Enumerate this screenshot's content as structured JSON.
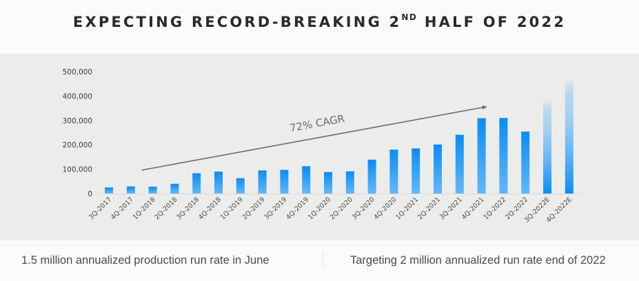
{
  "title": {
    "prefix": "EXPECTING RECORD-BREAKING 2",
    "superscript": "ND",
    "suffix": " HALF OF 2022"
  },
  "chart_data": {
    "type": "bar",
    "title": "EXPECTING RECORD-BREAKING 2ND HALF OF 2022",
    "xlabel": "",
    "ylabel": "",
    "ylim": [
      0,
      500000
    ],
    "yticks": [
      0,
      100000,
      200000,
      300000,
      400000,
      500000
    ],
    "ytick_labels": [
      "0",
      "100,000",
      "200,000",
      "300,000",
      "400,000",
      "500,000"
    ],
    "grid": false,
    "categories": [
      "3Q-2017",
      "4Q-2017",
      "1Q-2018",
      "2Q-2018",
      "3Q-2018",
      "4Q-2018",
      "1Q-2019",
      "2Q-2019",
      "3Q-2019",
      "4Q-2019",
      "1Q-2020",
      "2Q-2020",
      "3Q-2020",
      "4Q-2020",
      "1Q-2021",
      "2Q-2021",
      "3Q-2021",
      "4Q-2021",
      "1Q-2022",
      "2Q-2022",
      "3Q-2022E",
      "4Q-2022E"
    ],
    "values": [
      25000,
      29000,
      28000,
      40000,
      83000,
      90000,
      63000,
      95000,
      97000,
      112000,
      88000,
      91000,
      139000,
      180000,
      185000,
      201000,
      241000,
      309000,
      310000,
      254000,
      389000,
      474000
    ],
    "estimated": [
      false,
      false,
      false,
      false,
      false,
      false,
      false,
      false,
      false,
      false,
      false,
      false,
      false,
      false,
      false,
      false,
      false,
      false,
      false,
      false,
      true,
      true
    ],
    "annotations": [
      {
        "text": "72% CAGR",
        "type": "trend-arrow",
        "from_category": "1Q-2018",
        "to_category": "4Q-2021"
      }
    ],
    "colors": {
      "bar_top": "#0a8cf5",
      "bar_bottom": "#5bb5f8",
      "axis": "#d9d9d9",
      "tick_text": "#3a3a3a",
      "arrow": "#6b6b6b"
    }
  },
  "footer": {
    "left": "1.5 million annualized production run rate in June",
    "right": "Targeting 2 million annualized run rate end of 2022"
  }
}
